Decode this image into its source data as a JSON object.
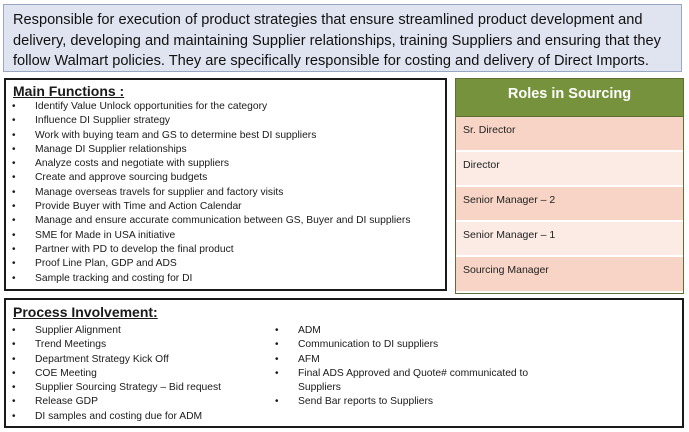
{
  "summary": {
    "text": "Responsible for execution of product strategies that ensure streamlined product development and delivery, developing and maintaining Supplier relationships, training Suppliers and ensuring that they follow Walmart policies.  They are specifically responsible for costing and delivery of Direct Imports."
  },
  "main_functions": {
    "title": "Main Functions :",
    "bullet_glyph": "•",
    "items": [
      "Identify Value Unlock opportunities for the category",
      "Influence DI Supplier strategy",
      "Work with buying team and GS to determine best DI suppliers",
      "Manage DI Supplier relationships",
      "Analyze costs and negotiate with suppliers",
      "Create and approve sourcing budgets",
      "Manage overseas travels for supplier and factory visits",
      "Provide Buyer with Time and Action Calendar",
      "Manage and ensure accurate communication between GS, Buyer and DI suppliers",
      "SME for Made in USA initiative",
      "Partner with PD to develop the final product",
      "Proof Line Plan, GDP and ADS",
      "Sample tracking and costing for DI"
    ]
  },
  "roles": {
    "title": "Roles in Sourcing",
    "header_color": "#77923c",
    "items": [
      "Sr. Director",
      "Director",
      "Senior Manager – 2",
      "Senior Manager – 1",
      "Sourcing Manager"
    ]
  },
  "process": {
    "title": "Process Involvement:",
    "left_items": [
      "Supplier Alignment",
      "Trend Meetings",
      "Department Strategy Kick Off",
      "COE Meeting",
      "Supplier Sourcing Strategy – Bid request",
      "Release GDP",
      "DI samples and costing due for ADM"
    ],
    "right_items": [
      "ADM",
      "Communication to DI suppliers",
      "AFM",
      "Final ADS Approved and Quote# communicated to Suppliers",
      "Send Bar reports to Suppliers"
    ]
  }
}
